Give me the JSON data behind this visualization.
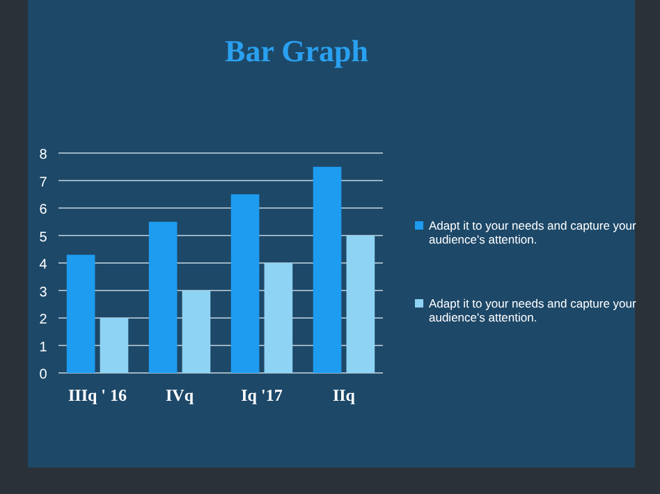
{
  "chart_data": {
    "type": "bar",
    "title": "Bar Graph",
    "categories": [
      "IIIq ' 16",
      "IVq",
      "Iq '17",
      "IIq"
    ],
    "series": [
      {
        "name": "Adapt it to your needs and capture your audience's attention.",
        "color": "#1e9cf0",
        "values": [
          4.3,
          5.5,
          6.5,
          7.5
        ]
      },
      {
        "name": "Adapt it to your needs and capture your audience's attention.",
        "color": "#8fd3f4",
        "values": [
          2,
          3,
          4,
          5
        ]
      }
    ],
    "ylim": [
      0,
      8
    ],
    "yticks": [
      0,
      1,
      2,
      3,
      4,
      5,
      6,
      7,
      8
    ],
    "grid": "y",
    "legend": "right"
  }
}
